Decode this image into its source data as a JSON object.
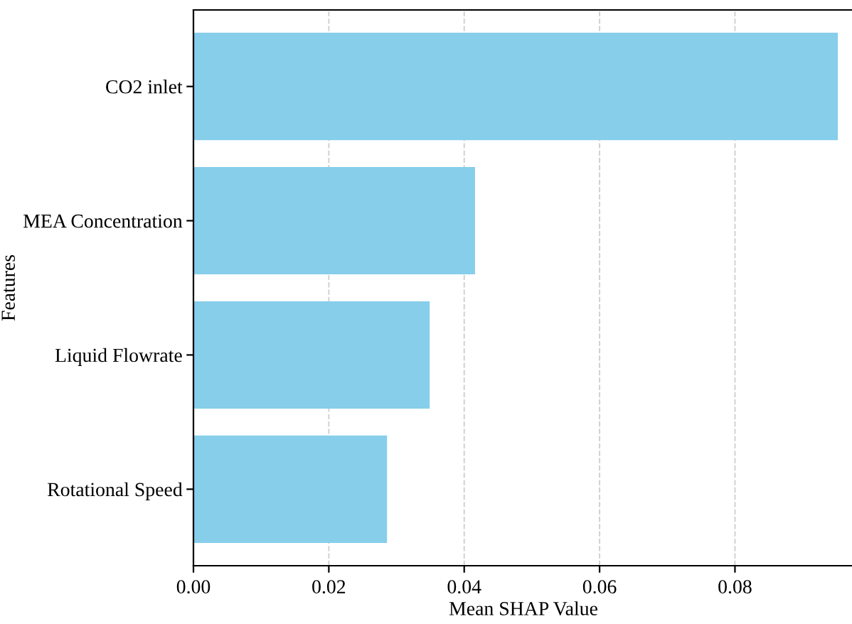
{
  "chart_data": {
    "type": "bar",
    "orientation": "horizontal",
    "xlabel": "Mean SHAP Value",
    "ylabel": "Features",
    "categories": [
      "CO2 inlet",
      "MEA Concentration",
      "Liquid Flowrate",
      "Rotational Speed"
    ],
    "values": [
      0.0952,
      0.0416,
      0.0349,
      0.0286
    ],
    "color": "#87ceeb",
    "xlim": [
      0,
      0.0975
    ],
    "xticks": [
      {
        "value": 0,
        "label": "0.00"
      },
      {
        "value": 0.02,
        "label": "0.02"
      },
      {
        "value": 0.04,
        "label": "0.04"
      },
      {
        "value": 0.06,
        "label": "0.06"
      },
      {
        "value": 0.08,
        "label": "0.08"
      }
    ],
    "grid": "x"
  }
}
